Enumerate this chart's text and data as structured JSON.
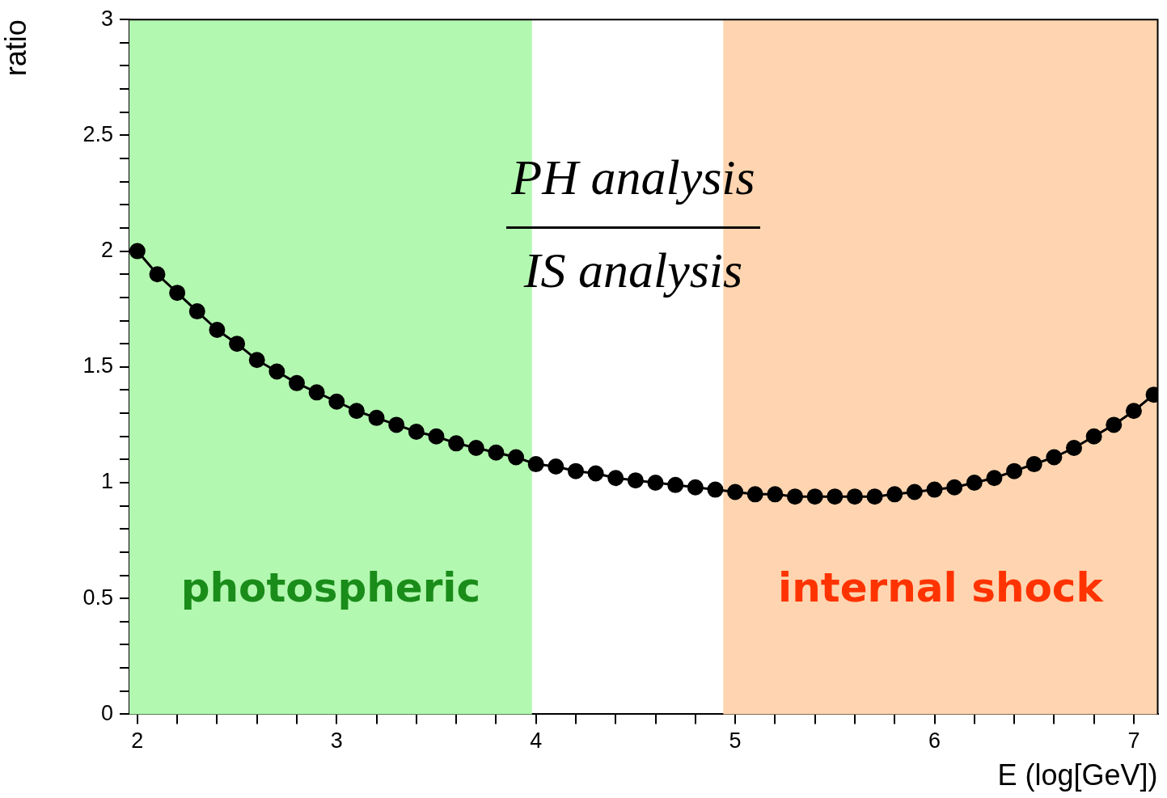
{
  "chart_data": {
    "type": "line",
    "xlabel": "E (log[GeV])",
    "ylabel": "ratio",
    "x": [
      2.0,
      2.1,
      2.2,
      2.3,
      2.4,
      2.5,
      2.6,
      2.7,
      2.8,
      2.9,
      3.0,
      3.1,
      3.2,
      3.3,
      3.4,
      3.5,
      3.6,
      3.7,
      3.8,
      3.9,
      4.0,
      4.1,
      4.2,
      4.3,
      4.4,
      4.5,
      4.6,
      4.7,
      4.8,
      4.9,
      5.0,
      5.1,
      5.2,
      5.3,
      5.4,
      5.5,
      5.6,
      5.7,
      5.8,
      5.9,
      6.0,
      6.1,
      6.2,
      6.3,
      6.4,
      6.5,
      6.6,
      6.7,
      6.8,
      6.9,
      7.0,
      7.1
    ],
    "series": [
      {
        "color": "#000000",
        "values": [
          2.0,
          1.9,
          1.82,
          1.74,
          1.66,
          1.6,
          1.53,
          1.48,
          1.43,
          1.39,
          1.35,
          1.31,
          1.28,
          1.25,
          1.22,
          1.2,
          1.17,
          1.15,
          1.13,
          1.11,
          1.08,
          1.07,
          1.05,
          1.04,
          1.02,
          1.01,
          1.0,
          0.99,
          0.98,
          0.97,
          0.96,
          0.95,
          0.95,
          0.94,
          0.94,
          0.94,
          0.94,
          0.94,
          0.95,
          0.96,
          0.97,
          0.98,
          1.0,
          1.02,
          1.05,
          1.08,
          1.11,
          1.15,
          1.2,
          1.25,
          1.31,
          1.38
        ]
      }
    ],
    "marker": "circle",
    "line_style": "solid",
    "legend": false,
    "grid": false,
    "xlim": [
      1.96,
      7.12
    ],
    "xticks": [
      2,
      {
        "value": 2.2,
        "label": null
      },
      {
        "value": 2.4,
        "label": null
      },
      {
        "value": 2.6,
        "label": null
      },
      {
        "value": 2.8,
        "label": null
      },
      3,
      {
        "value": 3.2,
        "label": null
      },
      {
        "value": 3.4,
        "label": null
      },
      {
        "value": 3.6,
        "label": null
      },
      {
        "value": 3.8,
        "label": null
      },
      4,
      {
        "value": 4.2,
        "label": null
      },
      {
        "value": 4.4,
        "label": null
      },
      {
        "value": 4.6,
        "label": null
      },
      {
        "value": 4.8,
        "label": null
      },
      5,
      {
        "value": 5.2,
        "label": null
      },
      {
        "value": 5.4,
        "label": null
      },
      {
        "value": 5.6,
        "label": null
      },
      {
        "value": 5.8,
        "label": null
      },
      6,
      {
        "value": 6.2,
        "label": null
      },
      {
        "value": 6.4,
        "label": null
      },
      {
        "value": 6.6,
        "label": null
      },
      {
        "value": 6.8,
        "label": null
      },
      7
    ],
    "ylim": [
      0,
      3
    ],
    "yticks": [
      0,
      {
        "value": 0.1,
        "label": null
      },
      {
        "value": 0.2,
        "label": null
      },
      {
        "value": 0.3,
        "label": null
      },
      {
        "value": 0.4,
        "label": null
      },
      0.5,
      {
        "value": 0.6,
        "label": null
      },
      {
        "value": 0.7,
        "label": null
      },
      {
        "value": 0.8,
        "label": null
      },
      {
        "value": 0.9,
        "label": null
      },
      1,
      {
        "value": 1.1,
        "label": null
      },
      {
        "value": 1.2,
        "label": null
      },
      {
        "value": 1.3,
        "label": null
      },
      {
        "value": 1.4,
        "label": null
      },
      1.5,
      {
        "value": 1.6,
        "label": null
      },
      {
        "value": 1.7,
        "label": null
      },
      {
        "value": 1.8,
        "label": null
      },
      {
        "value": 1.9,
        "label": null
      },
      2,
      {
        "value": 2.1,
        "label": null
      },
      {
        "value": 2.2,
        "label": null
      },
      {
        "value": 2.3,
        "label": null
      },
      {
        "value": 2.4,
        "label": null
      },
      2.5,
      {
        "value": 2.6,
        "label": null
      },
      {
        "value": 2.7,
        "label": null
      },
      {
        "value": 2.8,
        "label": null
      },
      {
        "value": 2.9,
        "label": null
      },
      3
    ],
    "bands": [
      {
        "axis": "x",
        "from": 1.96,
        "to": 3.98,
        "label": "photospheric",
        "color": "#b3f8b0"
      },
      {
        "axis": "x",
        "from": 4.94,
        "to": 7.12,
        "label": "internal shock",
        "color": "#fed5b0"
      }
    ],
    "annotations": [
      "PH analysis",
      "IS analysis"
    ]
  }
}
